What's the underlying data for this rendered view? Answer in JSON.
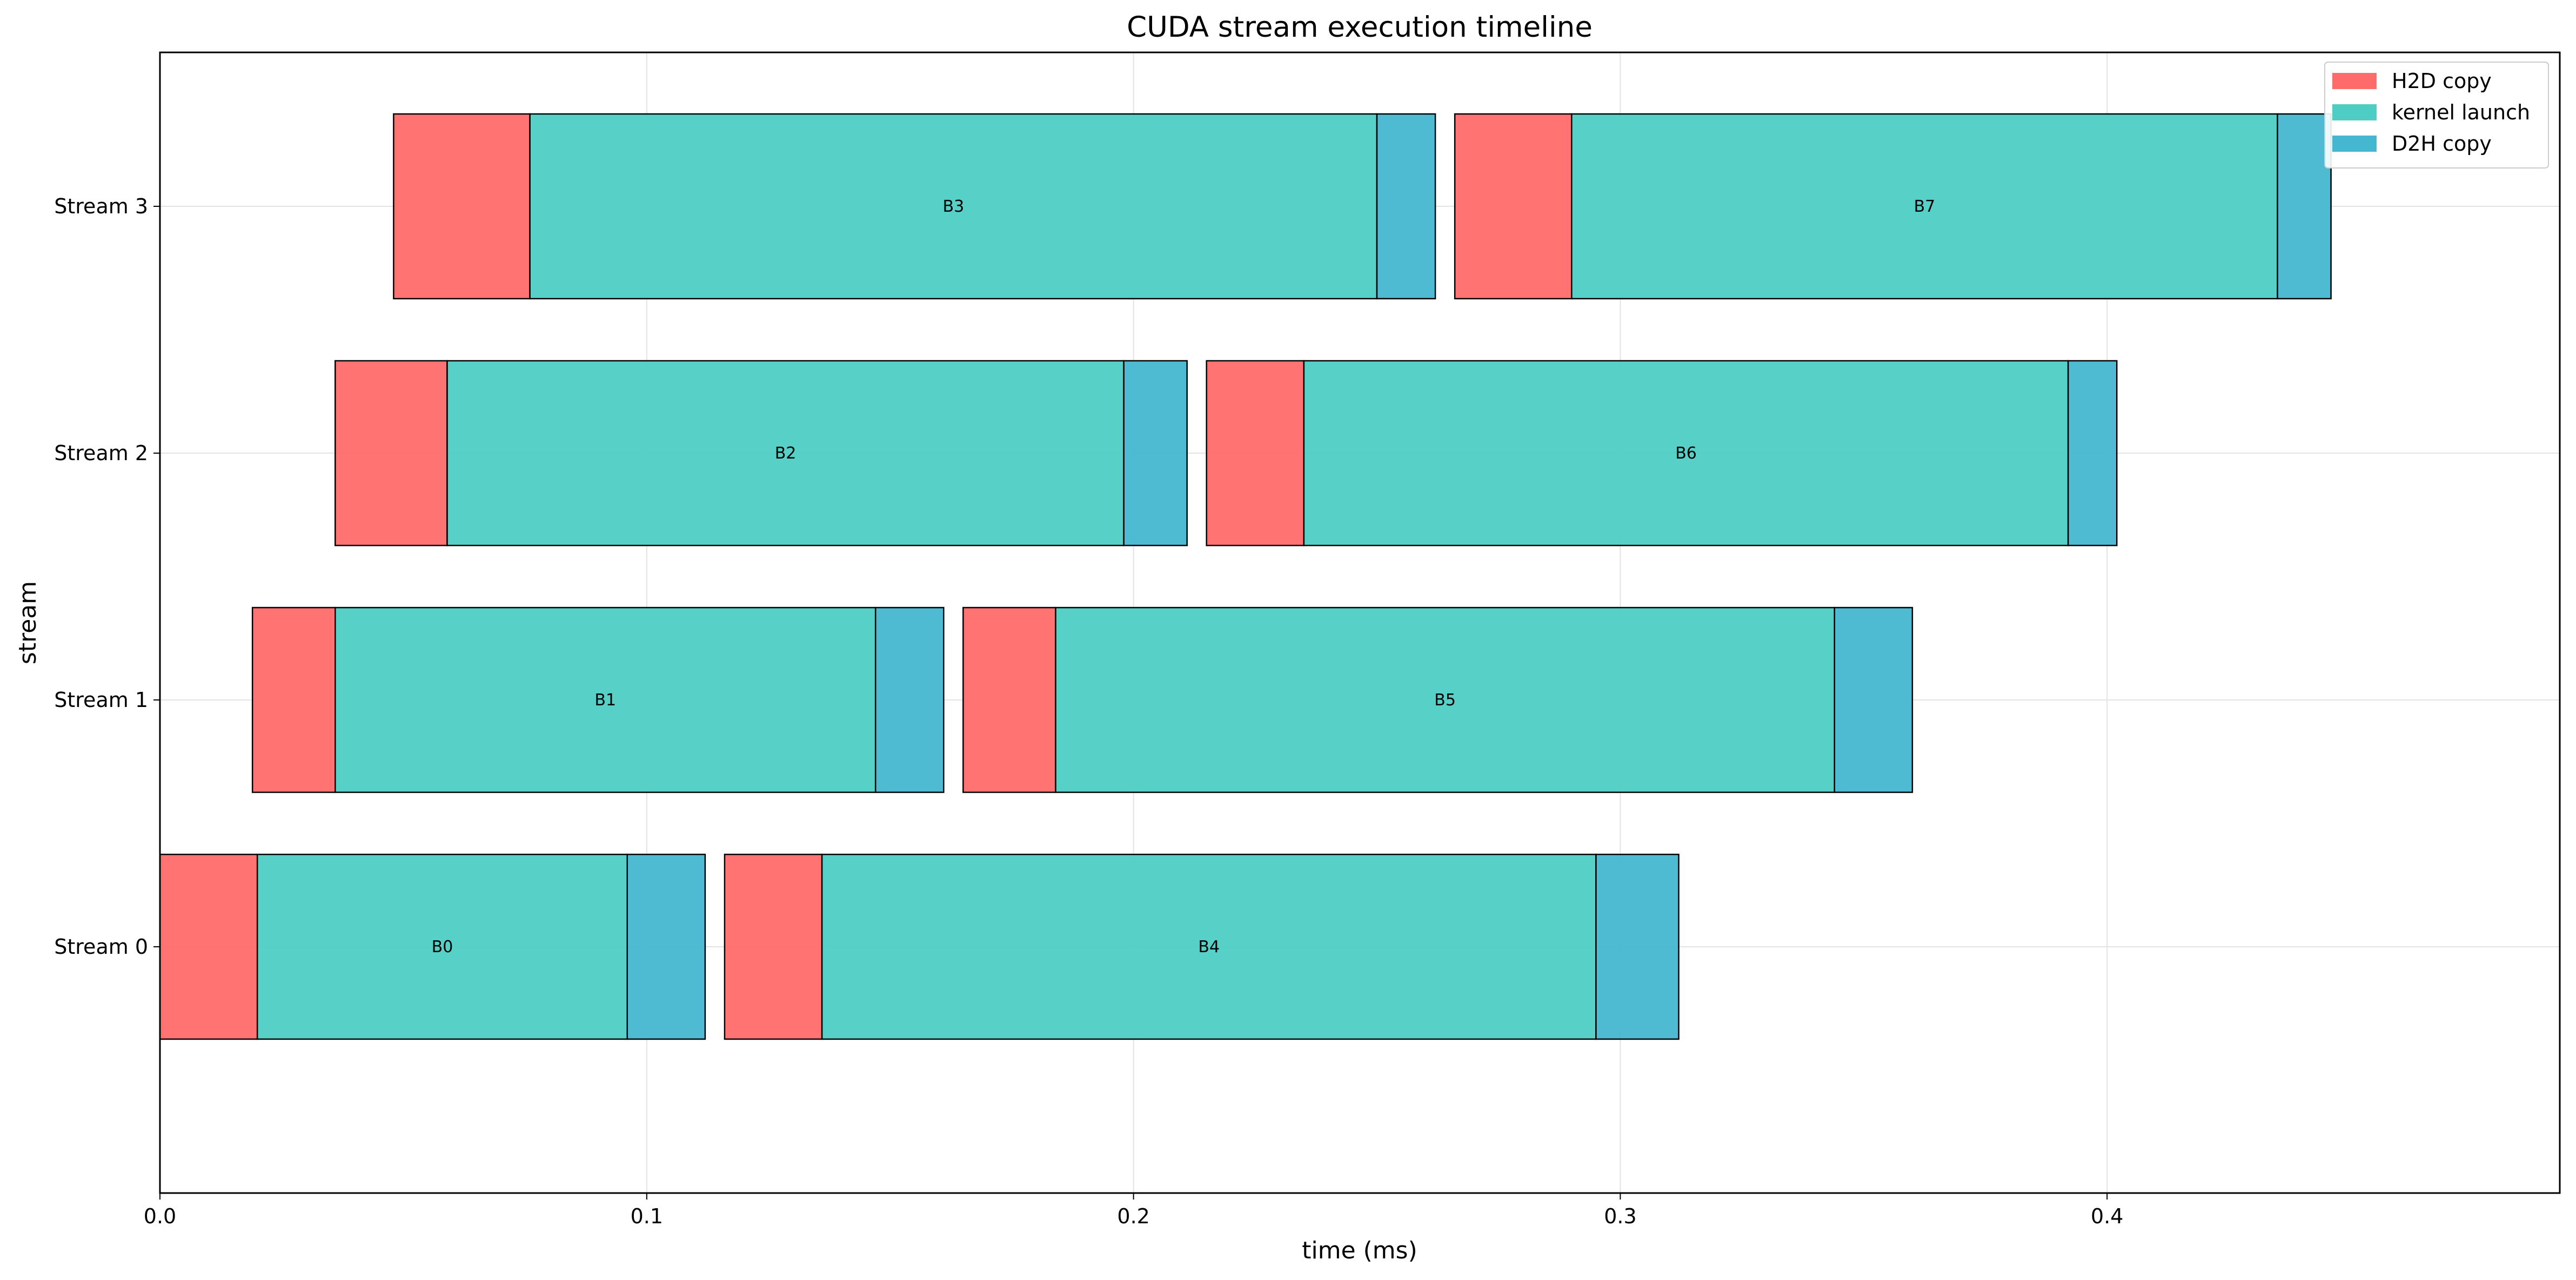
{
  "chart_data": {
    "type": "bar",
    "orientation": "horizontal-gantt",
    "title": "CUDA stream execution timeline",
    "xlabel": "time (ms)",
    "ylabel": "stream",
    "xlim": [
      0.0,
      0.493
    ],
    "xticks": [
      "0.0",
      "0.1",
      "0.2",
      "0.3",
      "0.4"
    ],
    "xtick_values": [
      0.0,
      0.1,
      0.2,
      0.3,
      0.4
    ],
    "categories": [
      "Stream 0",
      "Stream 1",
      "Stream 2",
      "Stream 3"
    ],
    "grid": true,
    "legend_position": "top-right",
    "phases": [
      {
        "name": "H2D copy",
        "color": "#ff6b6b"
      },
      {
        "name": "kernel launch",
        "color": "#4ecdc4"
      },
      {
        "name": "D2H copy",
        "color": "#45b7d1"
      }
    ],
    "batches": [
      {
        "label": "B0",
        "stream": 0,
        "h2d": [
          0.0,
          0.02
        ],
        "kernel": [
          0.02,
          0.096
        ],
        "d2h": [
          0.096,
          0.112
        ]
      },
      {
        "label": "B4",
        "stream": 0,
        "h2d": [
          0.116,
          0.136
        ],
        "kernel": [
          0.136,
          0.295
        ],
        "d2h": [
          0.295,
          0.312
        ]
      },
      {
        "label": "B1",
        "stream": 1,
        "h2d": [
          0.019,
          0.036
        ],
        "kernel": [
          0.036,
          0.147
        ],
        "d2h": [
          0.147,
          0.161
        ]
      },
      {
        "label": "B5",
        "stream": 1,
        "h2d": [
          0.165,
          0.184
        ],
        "kernel": [
          0.184,
          0.344
        ],
        "d2h": [
          0.344,
          0.36
        ]
      },
      {
        "label": "B2",
        "stream": 2,
        "h2d": [
          0.036,
          0.059
        ],
        "kernel": [
          0.059,
          0.198
        ],
        "d2h": [
          0.198,
          0.211
        ]
      },
      {
        "label": "B6",
        "stream": 2,
        "h2d": [
          0.215,
          0.235
        ],
        "kernel": [
          0.235,
          0.392
        ],
        "d2h": [
          0.392,
          0.402
        ]
      },
      {
        "label": "B3",
        "stream": 3,
        "h2d": [
          0.048,
          0.076
        ],
        "kernel": [
          0.076,
          0.25
        ],
        "d2h": [
          0.25,
          0.262
        ]
      },
      {
        "label": "B7",
        "stream": 3,
        "h2d": [
          0.266,
          0.29
        ],
        "kernel": [
          0.29,
          0.435
        ],
        "d2h": [
          0.435,
          0.446
        ]
      }
    ]
  }
}
